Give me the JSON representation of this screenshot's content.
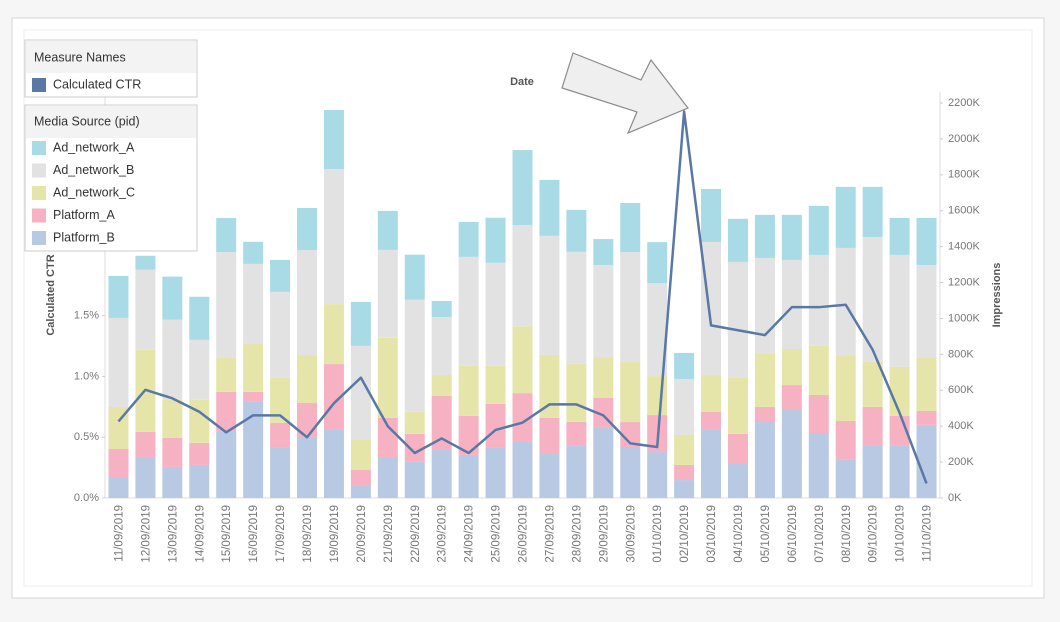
{
  "chart_data": {
    "type": "bar",
    "title": "Date",
    "y_label": "Calculated CTR",
    "y2_label": "Impressions",
    "line_legend_title": "Measure Names",
    "legend_title": "Media Source (pid)",
    "categories": [
      "11/09/2019",
      "12/09/2019",
      "13/09/2019",
      "14/09/2019",
      "15/09/2019",
      "16/09/2019",
      "17/09/2019",
      "18/09/2019",
      "19/09/2019",
      "20/09/2019",
      "21/09/2019",
      "22/09/2019",
      "23/09/2019",
      "24/09/2019",
      "25/09/2019",
      "26/09/2019",
      "27/09/2019",
      "28/09/2019",
      "29/09/2019",
      "30/09/2019",
      "01/10/2019",
      "02/10/2019",
      "03/10/2019",
      "04/10/2019",
      "05/10/2019",
      "06/10/2019",
      "07/10/2019",
      "08/10/2019",
      "09/10/2019",
      "10/10/2019",
      "11/10/2019"
    ],
    "series": [
      {
        "name": "Platform_B",
        "color": "#b8c9e3",
        "axis": "y2",
        "values": [
          117000,
          223000,
          173000,
          184000,
          368000,
          535000,
          279000,
          340000,
          384000,
          67000,
          223000,
          201000,
          267000,
          240000,
          279000,
          317000,
          245000,
          290000,
          395000,
          284000,
          256000,
          100000,
          384000,
          195000,
          423000,
          490000,
          362000,
          212000,
          295000,
          290000,
          407000
        ]
      },
      {
        "name": "Platform_A",
        "color": "#f6b2c2",
        "axis": "y2",
        "values": [
          156000,
          145000,
          162000,
          123000,
          223000,
          56000,
          139000,
          189000,
          362000,
          89000,
          223000,
          156000,
          301000,
          217000,
          245000,
          267000,
          201000,
          134000,
          162000,
          139000,
          206000,
          84000,
          95000,
          162000,
          84000,
          139000,
          212000,
          217000,
          212000,
          167000,
          78000
        ]
      },
      {
        "name": "Ad_network_C",
        "color": "#e5e5aa",
        "axis": "y2",
        "values": [
          234000,
          457000,
          212000,
          240000,
          189000,
          267000,
          251000,
          267000,
          334000,
          167000,
          446000,
          123000,
          117000,
          279000,
          212000,
          373000,
          351000,
          323000,
          228000,
          334000,
          217000,
          167000,
          206000,
          312000,
          295000,
          201000,
          273000,
          362000,
          251000,
          273000,
          295000
        ]
      },
      {
        "name": "Ad_network_B",
        "color": "#e2e2e2",
        "axis": "y2",
        "values": [
          496000,
          446000,
          446000,
          334000,
          590000,
          446000,
          479000,
          585000,
          752000,
          524000,
          490000,
          624000,
          323000,
          607000,
          574000,
          563000,
          663000,
          624000,
          512000,
          613000,
          518000,
          312000,
          741000,
          646000,
          535000,
          496000,
          507000,
          602000,
          696000,
          624000,
          518000
        ]
      },
      {
        "name": "Ad_network_A",
        "color": "#a8dbe6",
        "axis": "y2",
        "values": [
          234000,
          78000,
          240000,
          240000,
          189000,
          123000,
          178000,
          234000,
          329000,
          245000,
          217000,
          251000,
          89000,
          195000,
          251000,
          418000,
          312000,
          234000,
          145000,
          273000,
          228000,
          145000,
          295000,
          240000,
          240000,
          251000,
          273000,
          340000,
          279000,
          206000,
          262000
        ]
      },
      {
        "name": "Calculated CTR",
        "color": "#5878a6",
        "axis": "y",
        "type": "line",
        "values": [
          0.63,
          0.89,
          0.82,
          0.71,
          0.54,
          0.68,
          0.68,
          0.5,
          0.78,
          0.99,
          0.59,
          0.37,
          0.49,
          0.37,
          0.56,
          0.62,
          0.77,
          0.77,
          0.68,
          0.45,
          0.42,
          3.18,
          1.42,
          1.38,
          1.34,
          1.57,
          1.57,
          1.59,
          1.22,
          0.7,
          0.12
        ]
      }
    ],
    "ylim": [
      0,
      3.25
    ],
    "yticks": [
      {
        "value": 0,
        "label": "0.0%"
      },
      {
        "value": 0.5,
        "label": "0.5%"
      },
      {
        "value": 1,
        "label": "1.0%"
      },
      {
        "value": 1.5,
        "label": "1.5%"
      }
    ],
    "y2lim": [
      0,
      2200000
    ],
    "y2ticks": [
      {
        "value": 0,
        "label": "0K"
      },
      {
        "value": 200000,
        "label": "200K"
      },
      {
        "value": 400000,
        "label": "400K"
      },
      {
        "value": 600000,
        "label": "600K"
      },
      {
        "value": 800000,
        "label": "800K"
      },
      {
        "value": 1000000,
        "label": "1000K"
      },
      {
        "value": 1200000,
        "label": "1200K"
      },
      {
        "value": 1400000,
        "label": "1400K"
      },
      {
        "value": 1600000,
        "label": "1600K"
      },
      {
        "value": 1800000,
        "label": "1800K"
      },
      {
        "value": 2000000,
        "label": "2000K"
      },
      {
        "value": 2200000,
        "label": "2200K"
      }
    ],
    "grid": false
  }
}
